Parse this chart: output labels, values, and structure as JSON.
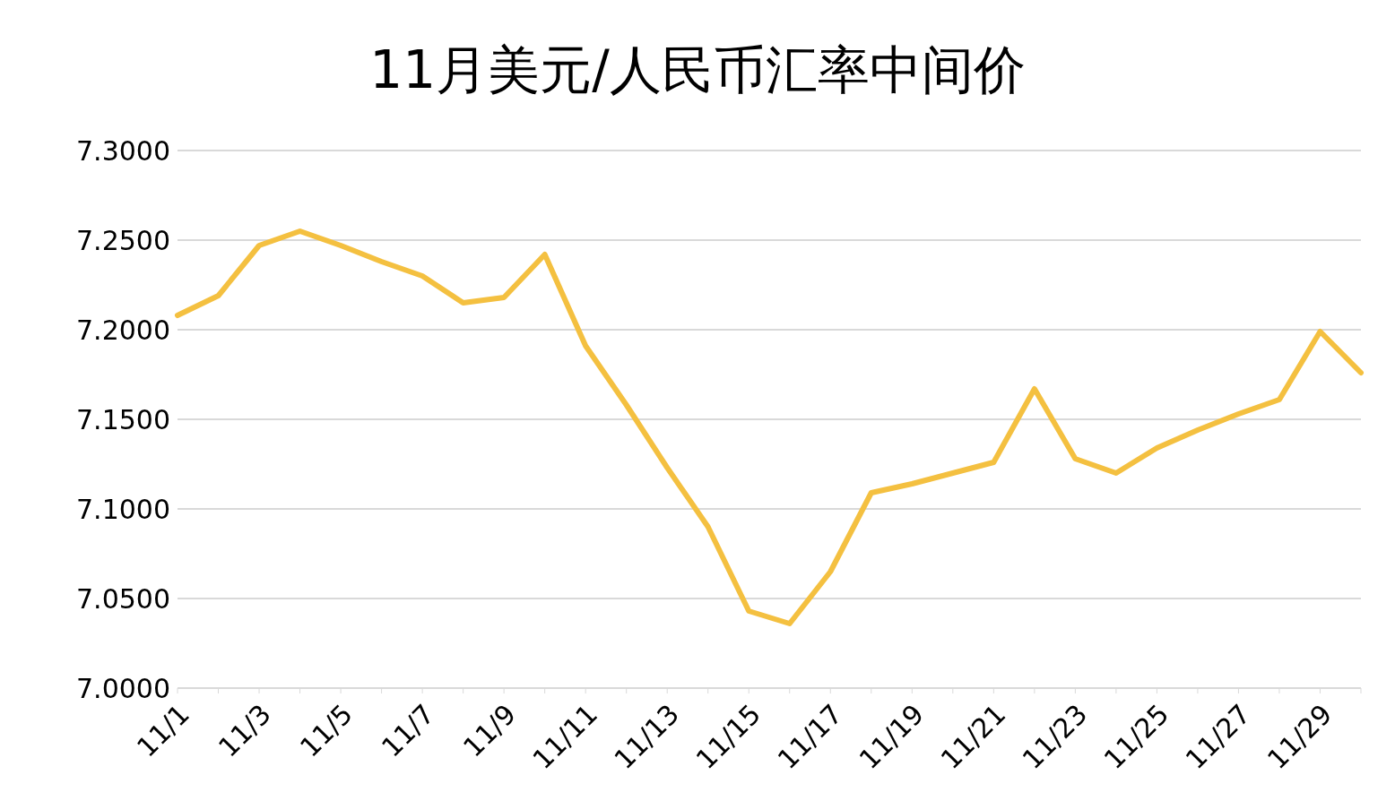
{
  "chart_data": {
    "type": "line",
    "title": "11月美元/人民币汇率中间价",
    "categories": [
      "11/1",
      null,
      "11/3",
      null,
      "11/5",
      null,
      "11/7",
      null,
      "11/9",
      null,
      "11/11",
      null,
      "11/13",
      null,
      "11/15",
      null,
      "11/17",
      null,
      "11/19",
      null,
      "11/21",
      null,
      "11/23",
      null,
      "11/25",
      null,
      "11/27",
      null,
      "11/29",
      null
    ],
    "series": [
      {
        "color": "#f4c040",
        "values": [
          7.208,
          7.219,
          7.247,
          7.255,
          7.247,
          7.238,
          7.23,
          7.215,
          7.218,
          7.242,
          7.191,
          7.158,
          7.123,
          7.09,
          7.043,
          7.036,
          7.065,
          7.109,
          7.114,
          7.12,
          7.126,
          7.167,
          7.128,
          7.12,
          7.134,
          7.144,
          7.153,
          7.161,
          7.199,
          7.176
        ]
      }
    ],
    "ylim": [
      7.0,
      7.3
    ],
    "yticks": [
      {
        "value": 7.0,
        "label": "7.0000"
      },
      {
        "value": 7.05,
        "label": "7.0500"
      },
      {
        "value": 7.1,
        "label": "7.1000"
      },
      {
        "value": 7.15,
        "label": "7.1500"
      },
      {
        "value": 7.2,
        "label": "7.2000"
      },
      {
        "value": 7.25,
        "label": "7.2500"
      },
      {
        "value": 7.3,
        "label": "7.3000"
      }
    ],
    "grid": "y",
    "legend": false,
    "marker": "none",
    "line_style": "solid"
  }
}
